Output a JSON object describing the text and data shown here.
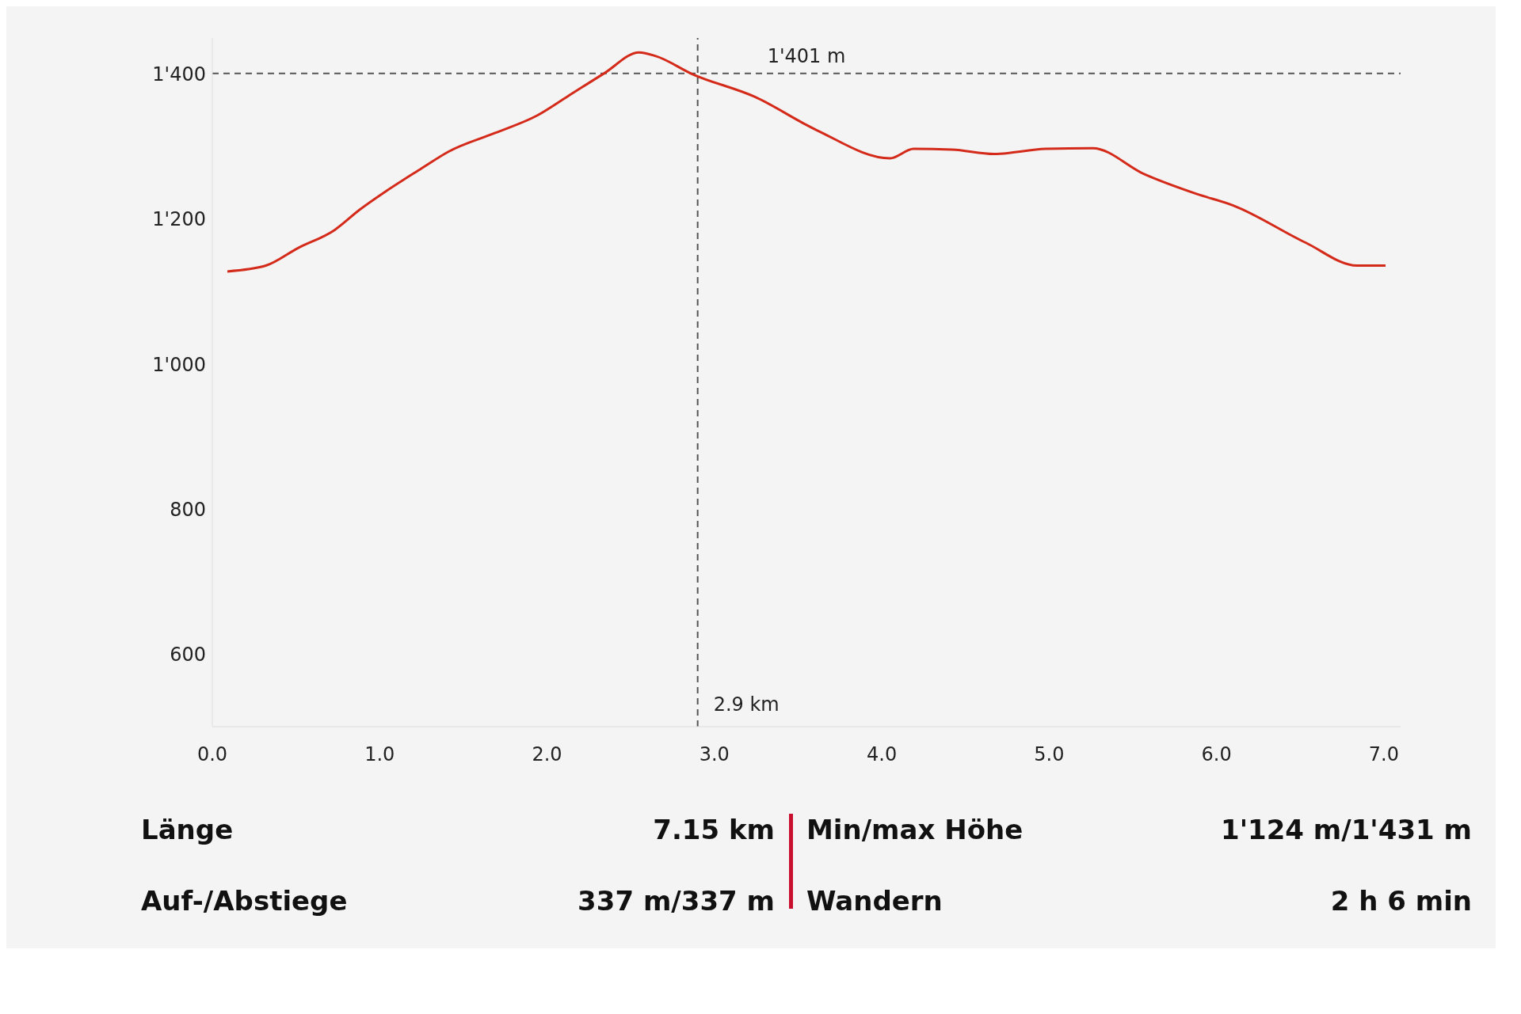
{
  "chart_data": {
    "type": "line",
    "x": [
      0.09,
      0.32,
      0.51,
      0.73,
      0.88,
      1.04,
      1.25,
      1.41,
      1.69,
      1.94,
      2.12,
      2.34,
      2.55,
      2.65,
      2.87,
      3.24,
      3.61,
      4.05,
      4.19,
      4.42,
      4.67,
      4.98,
      5.26,
      5.57,
      5.88,
      6.1,
      6.53,
      6.84,
      7.01
    ],
    "series": [
      {
        "color": "#d42a1a",
        "values": [
          1128,
          1136,
          1160,
          1185,
          1213,
          1239,
          1270,
          1293,
          1319,
          1343,
          1369,
          1401,
          1430,
          1425,
          1400,
          1369,
          1323,
          1284,
          1297,
          1296,
          1290,
          1297,
          1298,
          1262,
          1235,
          1219,
          1168,
          1136,
          1136
        ]
      }
    ],
    "xlim": [
      0,
      7.1
    ],
    "ylim": [
      500,
      1450
    ],
    "xticks": [
      {
        "value": 0,
        "label": "0.0"
      },
      {
        "value": 1,
        "label": "1.0"
      },
      {
        "value": 2,
        "label": "2.0"
      },
      {
        "value": 3,
        "label": "3.0"
      },
      {
        "value": 4,
        "label": "4.0"
      },
      {
        "value": 5,
        "label": "5.0"
      },
      {
        "value": 6,
        "label": "6.0"
      },
      {
        "value": 7,
        "label": "7.0"
      }
    ],
    "yticks": [
      600,
      800,
      {
        "value": 1000,
        "label": "1'000"
      },
      {
        "value": 1200,
        "label": "1'200"
      },
      {
        "value": 1400,
        "label": "1'400"
      }
    ],
    "ref_lines": [
      {
        "axis": "y",
        "value": 1401,
        "label": "1'401 m",
        "line_style": "dashed",
        "color": "#555555"
      },
      {
        "axis": "x",
        "value": 2.9,
        "label": "2.9 km",
        "line_style": "dashed",
        "color": "#555555"
      }
    ],
    "annotations": [
      "Länge",
      "7.15 km",
      "Min/max Höhe",
      "1'124 m/1'431 m",
      "Auf-/Abstiege",
      "337 m/337 m",
      "Wandern",
      "2 h 6 min"
    ],
    "marker": "none",
    "line_style": "solid"
  }
}
